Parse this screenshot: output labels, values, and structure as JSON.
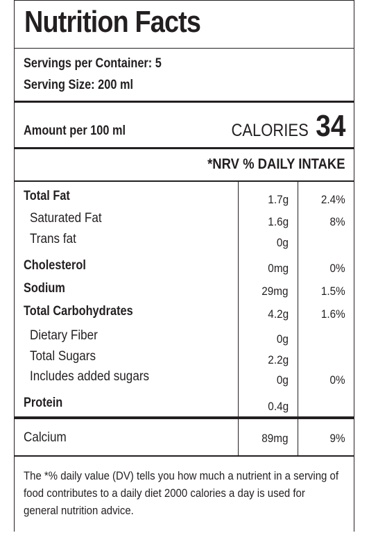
{
  "title": "Nutrition Facts",
  "servings_per_container": "Servings per Container: 5",
  "serving_size": "Serving Size: 200 ml",
  "amount_per": "Amount per 100 ml",
  "calories_label": "CALORIES",
  "calories_value": "34",
  "nrv_header": "*NRV % DAILY INTAKE",
  "rows": [
    {
      "name": "Total Fat",
      "amount": "1.7g",
      "percent": "2.4%"
    },
    {
      "name": "Saturated Fat",
      "amount": "1.6g",
      "percent": "8%"
    },
    {
      "name": "Trans fat",
      "amount": "0g",
      "percent": ""
    },
    {
      "name": "Cholesterol",
      "amount": "0mg",
      "percent": "0%"
    },
    {
      "name": "Sodium",
      "amount": "29mg",
      "percent": "1.5%"
    },
    {
      "name": "Total Carbohydrates",
      "amount": "4.2g",
      "percent": "1.6%"
    },
    {
      "name": "Dietary Fiber",
      "amount": "0g",
      "percent": ""
    },
    {
      "name": "Total Sugars",
      "amount": "2.2g",
      "percent": ""
    },
    {
      "name": "Includes added sugars",
      "amount": "0g",
      "percent": "0%"
    },
    {
      "name": "Protein",
      "amount": "0.4g",
      "percent": ""
    }
  ],
  "calcium": {
    "name": "Calcium",
    "amount": "89mg",
    "percent": "9%"
  },
  "footnote": "The *% daily value (DV) tells you how much a nutrient in a serving of food contributes to a daily diet 2000 calories a day is used for general nutrition advice."
}
